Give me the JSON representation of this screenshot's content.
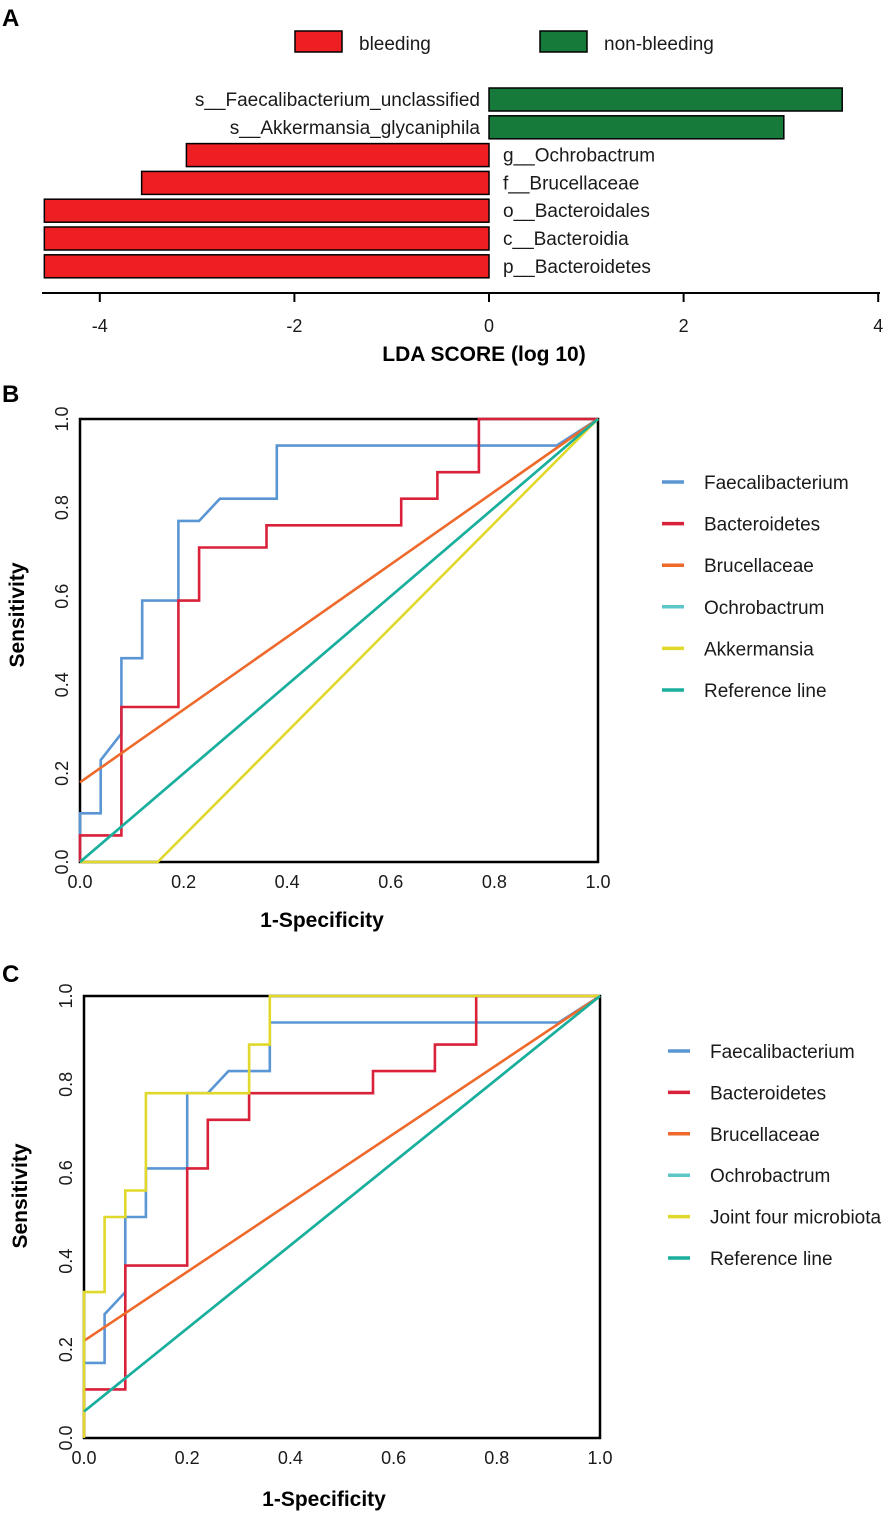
{
  "colors": {
    "bleeding": "#ee1f23",
    "non_bleeding": "#157a3a",
    "Faecalibacterium": "#5b96d4",
    "Bacteroidetes": "#d9213a",
    "Brucellaceae": "#ee6a2c",
    "Ochrobactrum": "#5cc6c8",
    "Akkermansia": "#e0d82a",
    "Joint four microbiota": "#e0d82a",
    "Reference line": "#1aaf9c"
  },
  "chart_data": [
    {
      "panel": "A",
      "type": "bar",
      "orientation": "horizontal",
      "xlabel": "LDA SCORE (log 10)",
      "xlim": [
        -4.6,
        4.0
      ],
      "xticks": [
        -4,
        -2,
        0,
        2,
        4
      ],
      "legend": [
        {
          "name": "bleeding",
          "color_key": "bleeding"
        },
        {
          "name": "non-bleeding",
          "color_key": "non_bleeding"
        }
      ],
      "categories": [
        "s__Faecalibacterium_unclassified",
        "s__Akkermansia_glycaniphila",
        "g__Ochrobactrum",
        "f__Brucellaceae",
        "o__Bacteroidales",
        "c__Bacteroidia",
        "p__Bacteroidetes"
      ],
      "values": [
        3.63,
        3.03,
        -3.11,
        -3.57,
        -4.57,
        -4.57,
        -4.57
      ],
      "groups": [
        "non-bleeding",
        "non-bleeding",
        "bleeding",
        "bleeding",
        "bleeding",
        "bleeding",
        "bleeding"
      ]
    },
    {
      "panel": "B",
      "type": "line",
      "xlabel": "1-Specificity",
      "ylabel": "Sensitivity",
      "xlim": [
        0,
        1
      ],
      "ylim": [
        0,
        1
      ],
      "xticks": [
        "0.0",
        "0.2",
        "0.4",
        "0.6",
        "0.8",
        "1.0"
      ],
      "yticks": [
        "0.0",
        "0.2",
        "0.4",
        "0.6",
        "0.8",
        "1.0"
      ],
      "series": [
        {
          "name": "Faecalibacterium",
          "color_key": "Faecalibacterium",
          "x": [
            0,
            0,
            0.04,
            0.04,
            0.08,
            0.08,
            0.12,
            0.12,
            0.19,
            0.19,
            0.23,
            0.27,
            0.38,
            0.38,
            0.92,
            1.0
          ],
          "y": [
            0,
            0.11,
            0.11,
            0.23,
            0.29,
            0.46,
            0.46,
            0.59,
            0.59,
            0.77,
            0.77,
            0.82,
            0.82,
            0.94,
            0.94,
            1.0
          ]
        },
        {
          "name": "Bacteroidetes",
          "color_key": "Bacteroidetes",
          "x": [
            0,
            0,
            0.08,
            0.08,
            0.19,
            0.19,
            0.23,
            0.23,
            0.36,
            0.36,
            0.62,
            0.62,
            0.69,
            0.69,
            0.77,
            0.77,
            1.0
          ],
          "y": [
            0,
            0.06,
            0.06,
            0.35,
            0.35,
            0.59,
            0.59,
            0.71,
            0.71,
            0.76,
            0.76,
            0.82,
            0.82,
            0.88,
            0.88,
            1.0,
            1.0
          ]
        },
        {
          "name": "Brucellaceae",
          "color_key": "Brucellaceae",
          "x": [
            0,
            1
          ],
          "y": [
            0.18,
            1.0
          ]
        },
        {
          "name": "Ochrobactrum",
          "color_key": "Ochrobactrum",
          "x": [
            0,
            1
          ],
          "y": [
            0,
            1.0
          ]
        },
        {
          "name": "Akkermansia",
          "color_key": "Akkermansia",
          "x": [
            0,
            0.15,
            1.0
          ],
          "y": [
            0,
            0,
            1.0
          ]
        },
        {
          "name": "Reference line",
          "color_key": "Reference line",
          "x": [
            0,
            1
          ],
          "y": [
            0,
            1.0
          ]
        }
      ]
    },
    {
      "panel": "C",
      "type": "line",
      "xlabel": "1-Specificity",
      "ylabel": "Sensitivity",
      "xlim": [
        0,
        1
      ],
      "ylim": [
        0,
        1
      ],
      "xticks": [
        "0.0",
        "0.2",
        "0.4",
        "0.6",
        "0.8",
        "1.0"
      ],
      "yticks": [
        "0.0",
        "0.2",
        "0.4",
        "0.6",
        "0.8",
        "1.0"
      ],
      "series": [
        {
          "name": "Faecalibacterium",
          "color_key": "Faecalibacterium",
          "x": [
            0,
            0,
            0.04,
            0.04,
            0.08,
            0.08,
            0.12,
            0.12,
            0.2,
            0.2,
            0.24,
            0.28,
            0.36,
            0.36,
            0.92,
            1.0
          ],
          "y": [
            0,
            0.17,
            0.17,
            0.28,
            0.33,
            0.5,
            0.5,
            0.61,
            0.61,
            0.78,
            0.78,
            0.83,
            0.83,
            0.94,
            0.94,
            1.0
          ]
        },
        {
          "name": "Bacteroidetes",
          "color_key": "Bacteroidetes",
          "x": [
            0,
            0,
            0.08,
            0.08,
            0.2,
            0.2,
            0.24,
            0.24,
            0.32,
            0.32,
            0.56,
            0.56,
            0.68,
            0.68,
            0.76,
            0.76,
            1.0
          ],
          "y": [
            0,
            0.11,
            0.11,
            0.39,
            0.39,
            0.61,
            0.61,
            0.72,
            0.72,
            0.78,
            0.78,
            0.83,
            0.83,
            0.89,
            0.89,
            1.0,
            1.0
          ]
        },
        {
          "name": "Brucellaceae",
          "color_key": "Brucellaceae",
          "x": [
            0,
            1
          ],
          "y": [
            0.22,
            1.0
          ]
        },
        {
          "name": "Ochrobactrum",
          "color_key": "Ochrobactrum",
          "x": [
            0,
            1
          ],
          "y": [
            0.06,
            1.0
          ]
        },
        {
          "name": "Joint four microbiota",
          "color_key": "Joint four microbiota",
          "x": [
            0,
            0,
            0.04,
            0.04,
            0.08,
            0.08,
            0.12,
            0.12,
            0.32,
            0.32,
            0.36,
            0.36,
            1.0
          ],
          "y": [
            0,
            0.33,
            0.33,
            0.5,
            0.5,
            0.56,
            0.56,
            0.78,
            0.78,
            0.89,
            0.89,
            1.0,
            1.0
          ]
        },
        {
          "name": "Reference line",
          "color_key": "Reference line",
          "x": [
            0,
            1
          ],
          "y": [
            0.06,
            1.0
          ]
        }
      ]
    }
  ]
}
